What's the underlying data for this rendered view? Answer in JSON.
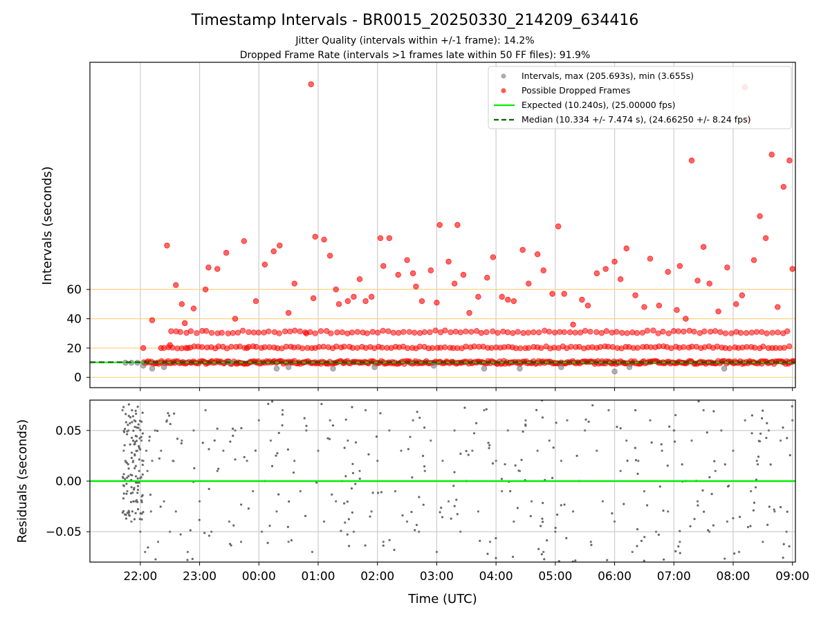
{
  "title": "Timestamp Intervals - BR0015_20250330_214209_634416",
  "subtitle_1": "Jitter Quality (intervals within +/-1 frame): 14.2%",
  "subtitle_2": "Dropped Frame Rate (intervals >1 frames late within 50 FF files): 91.9%",
  "colors": {
    "intervals": "#808080",
    "dropped": "#ff0000",
    "expected": "#00ee00",
    "median": "#006400",
    "threshold_lines": "#ffd27f",
    "grid": "#cccccc"
  },
  "chart_data": [
    {
      "type": "scatter",
      "title": "",
      "ylabel": "Intervals (seconds)",
      "y_ticks": [
        "0",
        "20",
        "40",
        "60"
      ],
      "y_tick_values": [
        0,
        20,
        40,
        60
      ],
      "ylim": [
        -7,
        215
      ],
      "x_ticks": [
        "22:00",
        "23:00",
        "00:00",
        "01:00",
        "02:00",
        "03:00",
        "04:00",
        "05:00",
        "06:00",
        "07:00",
        "08:00",
        "09:00"
      ],
      "x_tick_hours": [
        22,
        23,
        24,
        25,
        26,
        27,
        28,
        29,
        30,
        31,
        32,
        33
      ],
      "xlim_hours": [
        21.15,
        33.05
      ],
      "grid": "vertical",
      "horizontal_reference_lines": [
        0,
        20,
        40,
        60
      ],
      "legend_position": "top-right",
      "legend": [
        "Intervals, max (205.693s), min (3.655s)",
        "Possible Dropped Frames",
        "Expected (10.240s), (25.00000 fps)",
        "Median (10.334 +/- 7.474 s), (24.66250 +/- 8.24 fps)"
      ],
      "expected_interval": 10.24,
      "median_interval": 10.334,
      "interval_max": 205.693,
      "interval_min": 3.655,
      "series": [
        {
          "name": "Possible Dropped Frames",
          "color": "#ff0000",
          "points": [
            [
              22.05,
              20
            ],
            [
              22.2,
              39
            ],
            [
              22.35,
              20
            ],
            [
              22.45,
              90
            ],
            [
              22.5,
              22
            ],
            [
              22.6,
              63
            ],
            [
              22.7,
              50
            ],
            [
              22.75,
              37
            ],
            [
              22.8,
              20
            ],
            [
              22.9,
              47
            ],
            [
              23.1,
              60
            ],
            [
              23.15,
              75
            ],
            [
              23.3,
              74
            ],
            [
              23.45,
              85
            ],
            [
              23.6,
              40
            ],
            [
              23.75,
              93
            ],
            [
              23.8,
              20
            ],
            [
              23.95,
              52
            ],
            [
              24.1,
              77
            ],
            [
              24.25,
              86
            ],
            [
              24.35,
              90
            ],
            [
              24.5,
              44
            ],
            [
              24.6,
              64
            ],
            [
              24.8,
              30
            ],
            [
              24.88,
              200
            ],
            [
              24.92,
              54
            ],
            [
              24.95,
              96
            ],
            [
              25.1,
              94
            ],
            [
              25.2,
              83
            ],
            [
              25.3,
              60
            ],
            [
              25.35,
              50
            ],
            [
              25.5,
              52
            ],
            [
              25.6,
              55
            ],
            [
              25.7,
              67
            ],
            [
              25.8,
              52
            ],
            [
              25.9,
              55
            ],
            [
              26.05,
              95
            ],
            [
              26.1,
              76
            ],
            [
              26.2,
              95
            ],
            [
              26.35,
              70
            ],
            [
              26.5,
              80
            ],
            [
              26.6,
              71
            ],
            [
              26.65,
              62
            ],
            [
              26.75,
              52
            ],
            [
              26.9,
              73
            ],
            [
              27.0,
              51
            ],
            [
              27.05,
              104
            ],
            [
              27.2,
              79
            ],
            [
              27.3,
              64
            ],
            [
              27.35,
              104
            ],
            [
              27.45,
              70
            ],
            [
              27.55,
              44
            ],
            [
              27.7,
              55
            ],
            [
              27.85,
              68
            ],
            [
              27.95,
              82
            ],
            [
              28.1,
              55
            ],
            [
              28.2,
              53
            ],
            [
              28.3,
              52
            ],
            [
              28.45,
              87
            ],
            [
              28.55,
              64
            ],
            [
              28.7,
              84
            ],
            [
              28.8,
              73
            ],
            [
              28.95,
              57
            ],
            [
              29.05,
              103
            ],
            [
              29.15,
              57
            ],
            [
              29.3,
              36
            ],
            [
              29.45,
              53
            ],
            [
              29.55,
              49
            ],
            [
              29.7,
              71
            ],
            [
              29.85,
              74
            ],
            [
              30.0,
              79
            ],
            [
              30.1,
              67
            ],
            [
              30.2,
              88
            ],
            [
              30.35,
              56
            ],
            [
              30.5,
              48
            ],
            [
              30.6,
              81
            ],
            [
              30.75,
              49
            ],
            [
              30.9,
              72
            ],
            [
              31.05,
              46
            ],
            [
              31.1,
              76
            ],
            [
              31.2,
              40
            ],
            [
              31.3,
              148
            ],
            [
              31.4,
              66
            ],
            [
              31.5,
              89
            ],
            [
              31.6,
              64
            ],
            [
              31.75,
              45
            ],
            [
              31.9,
              75
            ],
            [
              32.05,
              50
            ],
            [
              32.15,
              56
            ],
            [
              32.2,
              198
            ],
            [
              32.25,
              176
            ],
            [
              32.35,
              80
            ],
            [
              32.45,
              110
            ],
            [
              32.55,
              95
            ],
            [
              32.65,
              152
            ],
            [
              32.75,
              48
            ],
            [
              32.85,
              130
            ],
            [
              32.95,
              148
            ],
            [
              33.0,
              74
            ]
          ]
        },
        {
          "name": "Intervals, max (205.693s), min (3.655s)",
          "color": "#808080",
          "points": [
            [
              21.75,
              10
            ],
            [
              21.85,
              10
            ],
            [
              21.95,
              10
            ],
            [
              22.05,
              8
            ],
            [
              22.2,
              6
            ],
            [
              22.4,
              7
            ],
            [
              23.5,
              10
            ],
            [
              24.3,
              6
            ],
            [
              24.5,
              7
            ],
            [
              25.25,
              6
            ],
            [
              25.95,
              7
            ],
            [
              26.95,
              8
            ],
            [
              27.8,
              6
            ],
            [
              28.4,
              6
            ],
            [
              29.1,
              7
            ],
            [
              30.0,
              4
            ],
            [
              30.25,
              7
            ],
            [
              31.85,
              6
            ]
          ]
        }
      ]
    },
    {
      "type": "scatter",
      "title": "",
      "xlabel": "Time (UTC)",
      "ylabel": "Residuals (seconds)",
      "y_ticks": [
        "0.05",
        "0.00",
        "−0.05"
      ],
      "y_tick_values": [
        0.05,
        0.0,
        -0.05
      ],
      "ylim": [
        -0.08,
        0.08
      ],
      "xlim_hours": [
        21.15,
        33.05
      ],
      "grid": "both",
      "zero_line_color": "#00ee00",
      "series": [
        {
          "name": "",
          "color": "#777777",
          "points": [
            [
              21.7,
              0.07
            ],
            [
              21.72,
              0.03
            ],
            [
              21.75,
              0.02
            ],
            [
              21.78,
              -0.01
            ],
            [
              21.8,
              0.05
            ],
            [
              21.82,
              0.0
            ],
            [
              21.85,
              -0.04
            ],
            [
              21.88,
              0.02
            ],
            [
              21.9,
              0.06
            ],
            [
              21.92,
              -0.02
            ],
            [
              21.95,
              0.03
            ],
            [
              21.98,
              0.01
            ],
            [
              22.0,
              -0.05
            ],
            [
              22.02,
              0.04
            ],
            [
              22.05,
              0.02
            ],
            [
              22.08,
              -0.07
            ],
            [
              22.1,
              0.03
            ],
            [
              22.12,
              0.01
            ],
            [
              22.15,
              0.04
            ],
            [
              22.18,
              -0.03
            ],
            [
              22.2,
              0.02
            ],
            [
              22.25,
              0.05
            ],
            [
              22.3,
              -0.06
            ],
            [
              22.35,
              0.03
            ],
            [
              22.4,
              -0.02
            ],
            [
              22.45,
              0.06
            ],
            [
              22.5,
              -0.05
            ],
            [
              22.55,
              0.02
            ],
            [
              22.6,
              -0.03
            ],
            [
              22.7,
              0.04
            ],
            [
              22.8,
              -0.07
            ],
            [
              22.9,
              0.05
            ],
            [
              23.0,
              -0.02
            ],
            [
              23.1,
              0.07
            ],
            [
              23.2,
              -0.05
            ],
            [
              23.3,
              0.01
            ],
            [
              23.4,
              0.03
            ],
            [
              23.5,
              -0.04
            ],
            [
              23.6,
              0.05
            ],
            [
              23.7,
              -0.06
            ],
            [
              23.8,
              0.02
            ],
            [
              23.9,
              -0.01
            ],
            [
              24.0,
              0.06
            ],
            [
              24.05,
              -0.05
            ],
            [
              24.1,
              0.0
            ],
            [
              24.2,
              0.04
            ],
            [
              24.3,
              -0.03
            ],
            [
              24.4,
              0.07
            ],
            [
              24.5,
              -0.06
            ],
            [
              24.6,
              0.02
            ],
            [
              24.7,
              -0.01
            ],
            [
              24.8,
              0.05
            ],
            [
              24.9,
              -0.07
            ],
            [
              25.0,
              0.03
            ],
            [
              25.1,
              -0.04
            ],
            [
              25.2,
              0.06
            ],
            [
              25.3,
              -0.02
            ],
            [
              25.4,
              0.0
            ],
            [
              25.5,
              0.04
            ],
            [
              25.6,
              -0.05
            ],
            [
              25.7,
              0.01
            ],
            [
              25.8,
              0.07
            ],
            [
              25.9,
              -0.03
            ],
            [
              26.0,
              0.02
            ],
            [
              26.1,
              -0.06
            ],
            [
              26.2,
              0.05
            ],
            [
              26.3,
              -0.01
            ],
            [
              26.4,
              0.03
            ],
            [
              26.5,
              -0.04
            ],
            [
              26.6,
              0.06
            ],
            [
              26.7,
              -0.05
            ],
            [
              26.8,
              0.01
            ],
            [
              26.9,
              0.04
            ],
            [
              27.0,
              -0.07
            ],
            [
              27.1,
              0.02
            ],
            [
              27.2,
              -0.02
            ],
            [
              27.3,
              0.05
            ],
            [
              27.4,
              -0.05
            ],
            [
              27.5,
              0.0
            ],
            [
              27.6,
              0.03
            ],
            [
              27.7,
              -0.03
            ],
            [
              27.8,
              0.07
            ],
            [
              27.9,
              -0.06
            ],
            [
              28.0,
              0.02
            ],
            [
              28.1,
              -0.01
            ],
            [
              28.2,
              0.05
            ],
            [
              28.3,
              -0.04
            ],
            [
              28.4,
              0.01
            ],
            [
              28.5,
              0.06
            ],
            [
              28.6,
              -0.02
            ],
            [
              28.7,
              0.03
            ],
            [
              28.8,
              -0.07
            ],
            [
              28.9,
              0.04
            ],
            [
              29.0,
              -0.05
            ],
            [
              29.1,
              0.02
            ],
            [
              29.2,
              0.06
            ],
            [
              29.3,
              -0.03
            ],
            [
              29.4,
              0.0
            ],
            [
              29.5,
              0.05
            ],
            [
              29.6,
              -0.06
            ],
            [
              29.7,
              0.03
            ],
            [
              29.8,
              -0.02
            ],
            [
              29.9,
              0.07
            ],
            [
              30.0,
              -0.04
            ],
            [
              30.1,
              0.01
            ],
            [
              30.2,
              0.04
            ],
            [
              30.3,
              -0.07
            ],
            [
              30.4,
              0.02
            ],
            [
              30.5,
              -0.01
            ],
            [
              30.6,
              0.06
            ],
            [
              30.7,
              -0.05
            ],
            [
              30.8,
              0.03
            ],
            [
              30.9,
              -0.03
            ],
            [
              31.0,
              0.05
            ],
            [
              31.1,
              -0.06
            ],
            [
              31.2,
              0.0
            ],
            [
              31.3,
              0.04
            ],
            [
              31.4,
              -0.02
            ],
            [
              31.5,
              0.07
            ],
            [
              31.6,
              -0.05
            ],
            [
              31.7,
              0.01
            ],
            [
              31.8,
              0.05
            ],
            [
              31.9,
              -0.04
            ],
            [
              32.0,
              0.03
            ],
            [
              32.1,
              -0.07
            ],
            [
              32.2,
              0.06
            ],
            [
              32.3,
              -0.01
            ],
            [
              32.4,
              0.02
            ],
            [
              32.5,
              -0.06
            ],
            [
              32.6,
              0.05
            ],
            [
              32.7,
              -0.03
            ],
            [
              32.8,
              0.04
            ],
            [
              32.9,
              -0.05
            ],
            [
              33.0,
              0.06
            ]
          ]
        }
      ]
    }
  ]
}
